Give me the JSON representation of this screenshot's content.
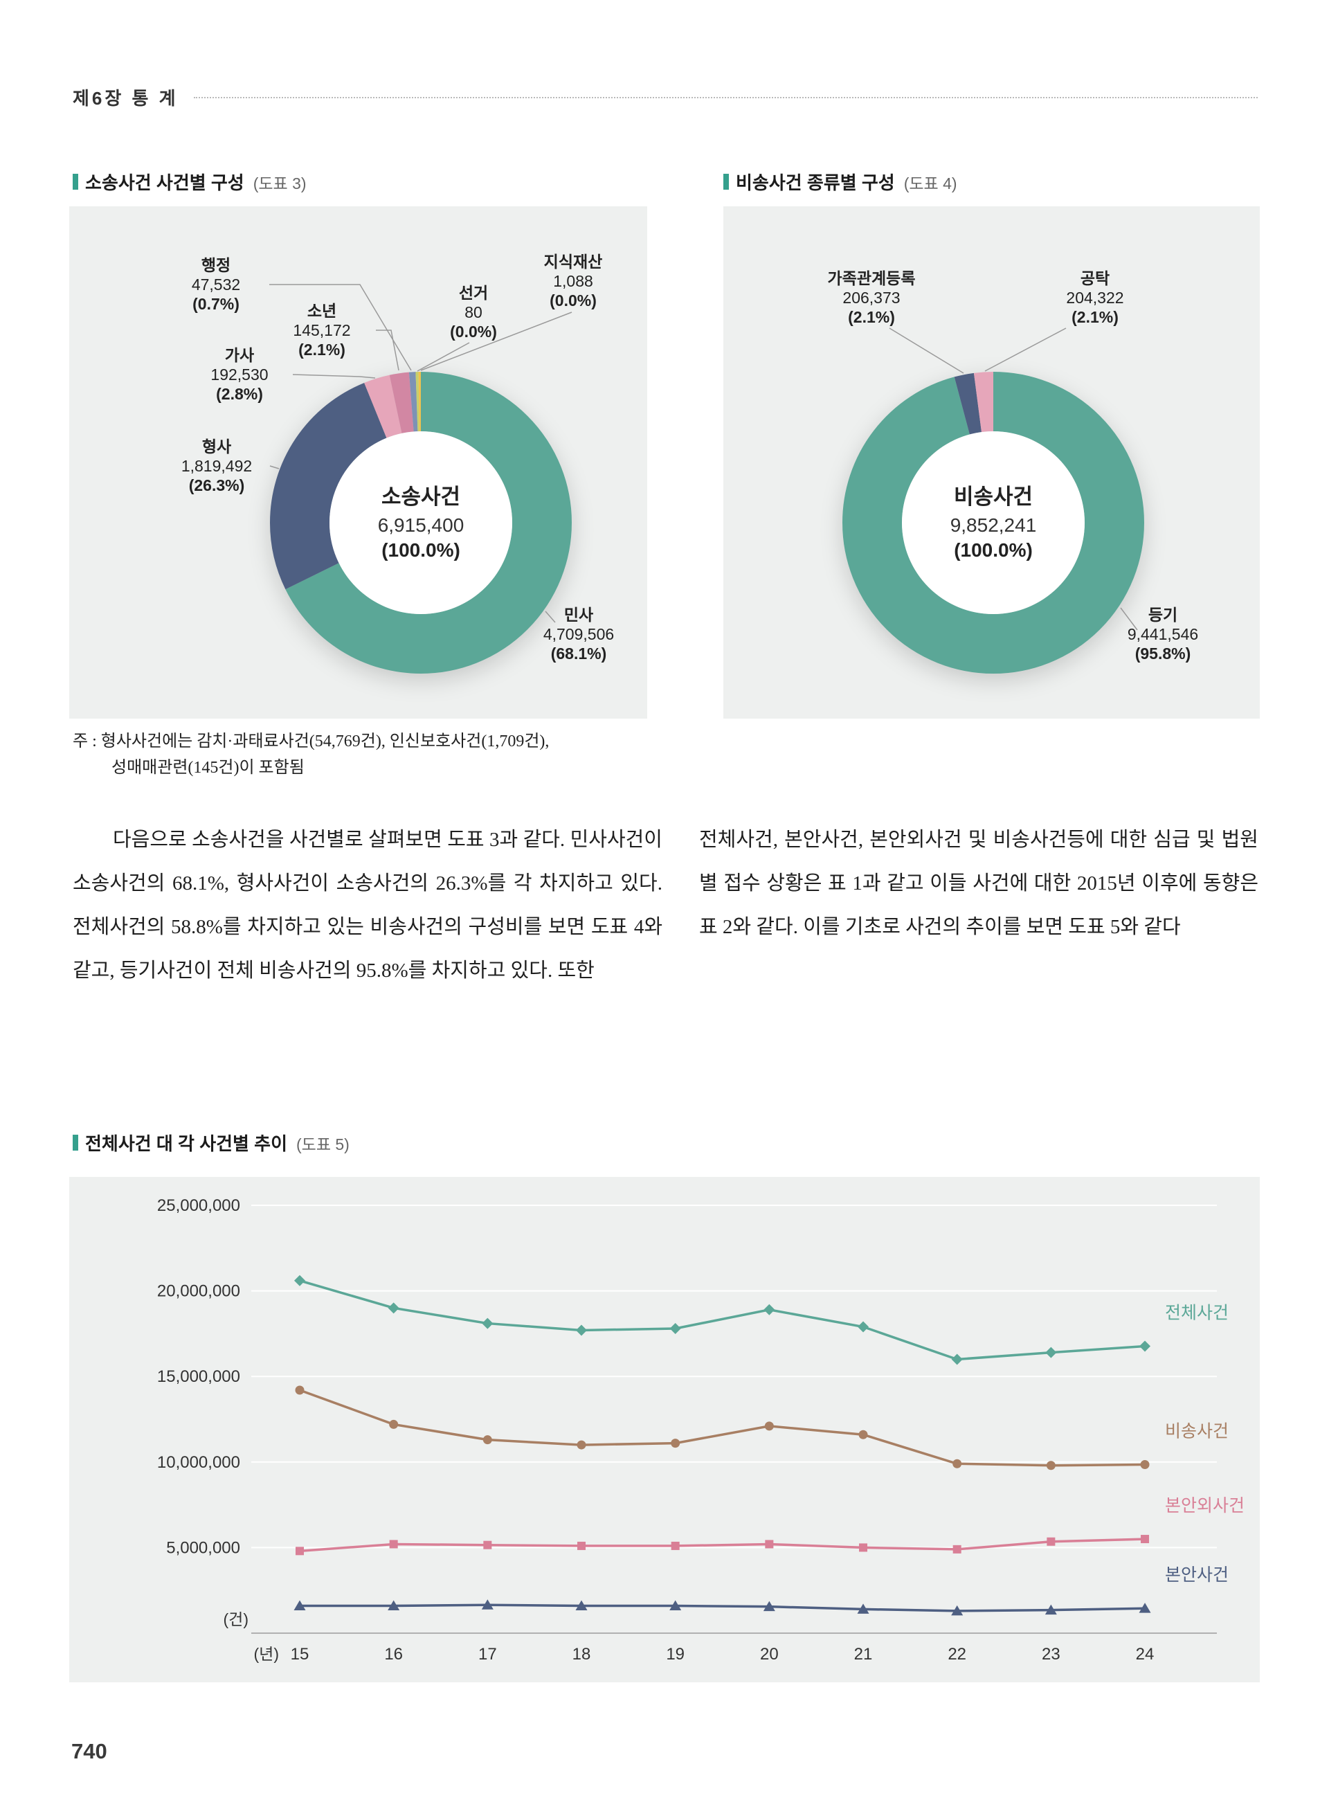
{
  "page": {
    "chapter": "제6장 통 계",
    "page_number": "740"
  },
  "theme": {
    "accent": "#35a08d",
    "panel_bg": "#eef0ef",
    "leader_line": "#9a9a9a"
  },
  "sections": {
    "chart3": {
      "title": "소송사건 사건별 구성",
      "tag": "(도표 3)"
    },
    "chart4": {
      "title": "비송사건 종류별 구성",
      "tag": "(도표 4)"
    },
    "chart5": {
      "title": "전체사건 대 각 사건별 추이",
      "tag": "(도표 5)"
    }
  },
  "note": {
    "line1": "주 : 형사사건에는 감치·과태료사건(54,769건), 인신보호사건(1,709건),",
    "line2": "성매매관련(145건)이 포함됨"
  },
  "body": {
    "left_paragraph": "다음으로 소송사건을 사건별로 살펴보면 도표 3과 같다. 민사사건이 소송사건의 68.1%, 형사사건이 소송사건의 26.3%를 각 차지하고 있다. 전체사건의 58.8%를 차지하고 있는 비송사건의 구성비를 보면 도표 4와 같고, 등기사건이 전체 비송사건의 95.8%를 차지하고 있다. 또한",
    "right_paragraph": "전체사건, 본안사건, 본안외사건 및 비송사건등에 대한 심급 및 법원별 접수 상황은 표 1과 같고 이들 사건에 대한 2015년 이후에 동향은 표 2와 같다. 이를 기초로 사건의 추이를 보면 도표 5와 같다"
  },
  "chart_data": [
    {
      "type": "pie",
      "variant": "donut",
      "title": "소송사건 사건별 구성",
      "center": {
        "label": "소송사건",
        "total": "6,915,400",
        "pct": "(100.0%)"
      },
      "slices": [
        {
          "label": "민사",
          "value": "4,709,506",
          "pct": "(68.1%)",
          "share": 68.1,
          "color": "#5ba797"
        },
        {
          "label": "형사",
          "value": "1,819,492",
          "pct": "(26.3%)",
          "share": 26.3,
          "color": "#4e5f82"
        },
        {
          "label": "가사",
          "value": "192,530",
          "pct": "(2.8%)",
          "share": 2.8,
          "color": "#e6a6ba"
        },
        {
          "label": "소년",
          "value": "145,172",
          "pct": "(2.1%)",
          "share": 2.1,
          "color": "#d287a3"
        },
        {
          "label": "행정",
          "value": "47,532",
          "pct": "(0.7%)",
          "share": 0.7,
          "color": "#7d92b5"
        },
        {
          "label": "선거",
          "value": "80",
          "pct": "(0.0%)",
          "share": 0.0,
          "color": "#c7cf6d"
        },
        {
          "label": "지식재산",
          "value": "1,088",
          "pct": "(0.0%)",
          "share": 0.0,
          "color": "#f0c24f"
        }
      ]
    },
    {
      "type": "pie",
      "variant": "donut",
      "title": "비송사건 종류별 구성",
      "center": {
        "label": "비송사건",
        "total": "9,852,241",
        "pct": "(100.0%)"
      },
      "slices": [
        {
          "label": "등기",
          "value": "9,441,546",
          "pct": "(95.8%)",
          "share": 95.8,
          "color": "#5ba797"
        },
        {
          "label": "가족관계등록",
          "value": "206,373",
          "pct": "(2.1%)",
          "share": 2.1,
          "color": "#4e5f82"
        },
        {
          "label": "공탁",
          "value": "204,322",
          "pct": "(2.1%)",
          "share": 2.1,
          "color": "#e6a6ba"
        }
      ]
    },
    {
      "type": "line",
      "title": "전체사건 대 각 사건별 추이",
      "y_unit": "(건)",
      "x_unit": "(년)",
      "x": [
        "15",
        "16",
        "17",
        "18",
        "19",
        "20",
        "21",
        "22",
        "23",
        "24"
      ],
      "y_ticks": [
        "25,000,000",
        "20,000,000",
        "15,000,000",
        "10,000,000",
        "5,000,000"
      ],
      "ylim": [
        0,
        25000000
      ],
      "grid": true,
      "legend_position": "right-of-lines",
      "series": [
        {
          "name": "전체사건",
          "color": "#5ba797",
          "marker": "diamond",
          "values": [
            20600000,
            19000000,
            18100000,
            17700000,
            17800000,
            18900000,
            17900000,
            16000000,
            16400000,
            16770000
          ]
        },
        {
          "name": "비송사건",
          "color": "#a87f63",
          "marker": "circle",
          "values": [
            14200000,
            12200000,
            11300000,
            11000000,
            11100000,
            12100000,
            11600000,
            9900000,
            9800000,
            9850000
          ]
        },
        {
          "name": "본안외사건",
          "color": "#d97f96",
          "marker": "square",
          "values": [
            4800000,
            5200000,
            5150000,
            5100000,
            5100000,
            5200000,
            5000000,
            4900000,
            5350000,
            5500000
          ]
        },
        {
          "name": "본안사건",
          "color": "#4e5f82",
          "marker": "triangle",
          "values": [
            1600000,
            1600000,
            1650000,
            1600000,
            1600000,
            1550000,
            1400000,
            1300000,
            1350000,
            1450000
          ]
        }
      ]
    }
  ]
}
